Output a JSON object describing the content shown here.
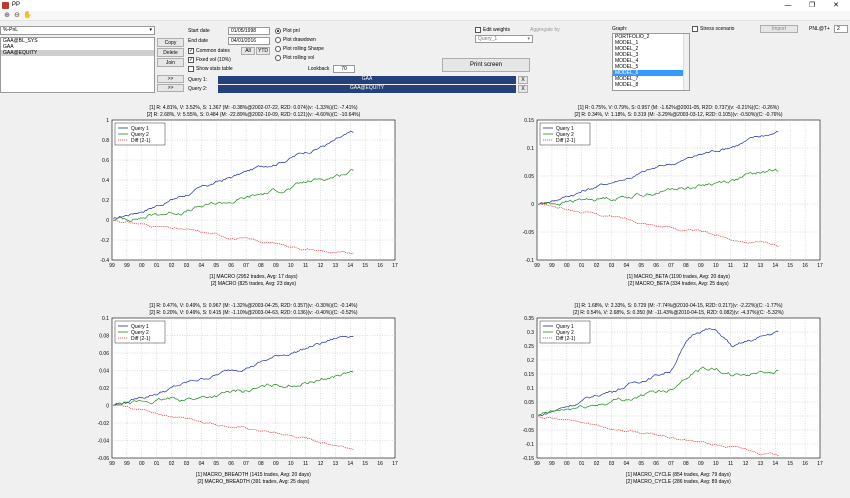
{
  "window": {
    "title": "PP",
    "min": "—",
    "restore": "❐",
    "close": "✕"
  },
  "toolbar": {
    "icons": [
      "zoom-in-icon",
      "zoom-out-icon",
      "pan-icon"
    ]
  },
  "left": {
    "dropdown_value": "%-PnL",
    "list": [
      "GAA@BL_SYS",
      "GAA",
      "GAA@EQUITY"
    ],
    "selected_index": 2,
    "buttons": {
      "copy": "Copy",
      "delete": "Delete",
      "join": "Join",
      "arrow1": ">>",
      "arrow2": ">>"
    }
  },
  "dates": {
    "start_label": "Start date",
    "start_value": "01/05/1998",
    "end_label": "End date",
    "end_value": "04/01/2016",
    "common_dates": "Common dates",
    "fixed_vol": "Fixed vol (10%)",
    "show_stats": "Show stats table",
    "all_btn": "All",
    "ytd_btn": "YTD"
  },
  "plot_options": {
    "pnl": "Plot pnl",
    "drawdown": "Plot drawdown",
    "sharpe": "Plot rolling Sharpe",
    "vol": "Plot rolling vol",
    "lookback_label": "Lookback",
    "lookback_value": "70"
  },
  "queries": {
    "q1_label": "Query 1:",
    "q1_value": "GAA",
    "q2_label": "Query 2:",
    "q2_value": "GAA@EQUITY",
    "remove": "X"
  },
  "weights": {
    "edit_weights": "Edit weights",
    "aggregate_by": "Aggregate by",
    "query_select": "Query_1",
    "print_screen": "Print screen"
  },
  "graph": {
    "label": "Graph:",
    "items": [
      "PORTFOLIO_2",
      "MODEL_1",
      "MODEL_2",
      "MODEL_3",
      "MODEL_4",
      "MODEL_5",
      "MODEL_6",
      "MODEL_7",
      "MODEL_8"
    ],
    "selected_index": 6
  },
  "stress": {
    "label": "Stress scenario",
    "import": "Import",
    "pnl_select": "PNL@T+",
    "pnl_value": "2"
  },
  "charts": [
    {
      "title1": "[1] R: 4.81%, V: 3.52%, S: 1.367 (M: -0.38%@2002-07-22, R2D: 0.074)(v: -1.33%)(C: -7.41%)",
      "title2": "[2] R: 2.68%, V: 5.55%, S: 0.484 (M: -22.89%@2002-10-09, R2D: 0.121)(v: -4.60%)(C: -10.64%)",
      "caption1": "[1] MACRO (2952 trades, Avg: 17 days)",
      "caption2": "[2] MACRO (825 trades, Avg: 23 days)",
      "ylim": [
        -0.4,
        1.0
      ],
      "yticks": [
        "1",
        "0.8",
        "0.6",
        "0.4",
        "0.2",
        "0",
        "-0.2",
        "-0.4"
      ],
      "series_end": [
        0.86,
        0.5,
        -0.35
      ]
    },
    {
      "title1": "[1] R: 0.75%, V: 0.79%, S: 0.957 (M: -1.62%@2001-05, R2D: 0.737)(v: -0.21%)(C: -0.26%)",
      "title2": "[2] R: 0.34%, V: 1.18%, S: 0.319 (M: -3.29%@2003-03-12, R2D: 0.105)(v: -0.50%)(C: -0.76%)",
      "caption1": "[1] MACRO_BETA (1190 trades, Avg: 20 days)",
      "caption2": "[2] MACRO_BETA (334 trades, Avg: 25 days)",
      "ylim": [
        -0.1,
        0.15
      ],
      "yticks": [
        "0.15",
        "0.1",
        "0.05",
        "0",
        "-0.05",
        "-0.1"
      ],
      "series_end": [
        0.13,
        0.06,
        -0.075
      ]
    },
    {
      "title1": "[1] R: 0.47%, V: 0.49%, S: 0.967 (M: -1.32%@2003-04-25, R2D: 0.357)(v: -0.30%)(C: -0.14%)",
      "title2": "[2] R: 0.20%, V: 0.49%, S: 0.415 (M: -1.10%@2003-04-63, R2D: 0.136)(v: -0.40%)(C: -0.52%)",
      "caption1": "[1] MACRO_BREADTH (1415 trades, Avg: 20 days)",
      "caption2": "[2] MACRO_BREADTH (391 trades, Avg: 25 days)",
      "ylim": [
        -0.06,
        0.1
      ],
      "yticks": [
        "0.1",
        "0.08",
        "0.06",
        "0.04",
        "0.02",
        "0",
        "-0.02",
        "-0.04",
        "-0.06"
      ],
      "series_end": [
        0.082,
        0.038,
        -0.048
      ]
    },
    {
      "title1": "[1] R: 1.68%, V: 2.33%, S: 0.729 (M: -7.74%@2010-04-15, R2D: 0.217)(v: -2.22%)(C: -1.77%)",
      "title2": "[2] R: 0.54%, V: 2.68%, S: 0.350 (M: -11.43%@2010-04-15, R2D: 0.082)(v: -4.37%)(C: -5.32%)",
      "caption1": "[1] MACRO_CYCLE (854 trades, Avg: 79 days)",
      "caption2": "[2] MACRO_CYCLE (286 trades, Avg: 89 days)",
      "ylim": [
        -0.15,
        0.35
      ],
      "yticks": [
        "0.35",
        "0.3",
        "0.25",
        "0.2",
        "0.15",
        "0.1",
        "0.05",
        "0",
        "-0.05",
        "-0.1",
        "-0.15"
      ],
      "series_end": [
        0.3,
        0.17,
        -0.14
      ]
    }
  ],
  "chart_legend": [
    "Query 1",
    "Query 2",
    "Diff (2-1)"
  ],
  "chart_xticks": [
    "99",
    "99",
    "00",
    "01",
    "02",
    "03",
    "04",
    "05",
    "06",
    "07",
    "08",
    "09",
    "10",
    "11",
    "12",
    "13",
    "14",
    "15",
    "16",
    "17"
  ],
  "colors": {
    "q1": "#1c2fa8",
    "q2": "#1b8a1b",
    "diff": "#d93030",
    "selected": "#3399ff",
    "query_bar": "#25407a"
  }
}
